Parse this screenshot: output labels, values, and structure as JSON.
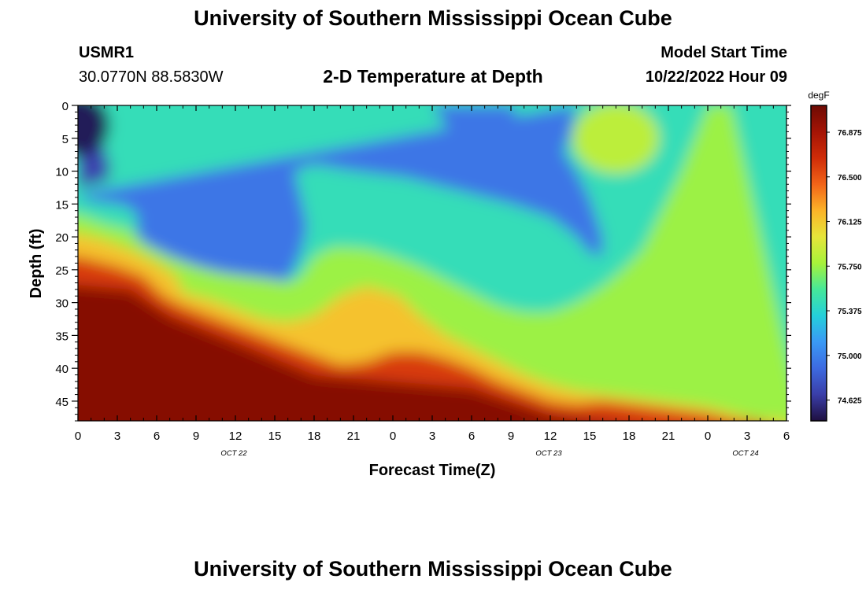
{
  "header": {
    "title": "University of Southern Mississippi Ocean Cube",
    "station_id": "USMR1",
    "coordinates": "30.0770N  88.5830W",
    "subtitle": "2-D Temperature at Depth",
    "model_start_label": "Model Start Time",
    "model_start_value": "10/22/2022 Hour 09"
  },
  "footer": {
    "title": "University of Southern Mississippi Ocean Cube"
  },
  "chart_data": {
    "type": "heatmap",
    "title": "2-D Temperature at Depth",
    "xlabel": "Forecast Time(Z)",
    "ylabel": "Depth (ft)",
    "x_ticks": [
      "0",
      "3",
      "6",
      "9",
      "12",
      "15",
      "18",
      "21",
      "0",
      "3",
      "6",
      "9",
      "12",
      "15",
      "18",
      "21",
      "0",
      "3",
      "6"
    ],
    "x_date_labels": [
      {
        "label": "OCT 22",
        "tick_index": 4
      },
      {
        "label": "OCT 23",
        "tick_index": 12
      },
      {
        "label": "OCT 24",
        "tick_index": 17
      }
    ],
    "x_range_hours": [
      0,
      54
    ],
    "y_ticks": [
      "0",
      "5",
      "10",
      "15",
      "20",
      "25",
      "30",
      "35",
      "40",
      "45"
    ],
    "y_range": [
      0,
      48
    ],
    "y_inverted": true,
    "colorbar": {
      "unit": "degF",
      "range": [
        74.45,
        77.1
      ],
      "tick_values": [
        74.625,
        75.0,
        75.375,
        75.75,
        76.125,
        76.5,
        76.875
      ],
      "tick_labels": [
        "74.625",
        "75.000",
        "75.375",
        "75.750",
        "76.125",
        "76.500",
        "76.875"
      ],
      "colors": [
        "#1e0f40",
        "#3a3ea8",
        "#3d6ae0",
        "#3a99f5",
        "#24d0da",
        "#46e899",
        "#a7f23a",
        "#e6e53a",
        "#fbb328",
        "#f26418",
        "#cf2c08",
        "#a41405",
        "#6e0b04"
      ]
    },
    "isotherms": [
      {
        "value": 74.9,
        "points": [
          [
            0,
            0
          ],
          [
            0.9,
            0
          ],
          [
            2.5,
            9.5
          ],
          [
            2.2,
            11.5
          ],
          [
            0,
            12.5
          ]
        ]
      },
      {
        "value": 75.15,
        "points": [
          [
            0,
            13.5
          ],
          [
            0.8,
            14.5
          ],
          [
            3.5,
            15.2
          ],
          [
            4.5,
            16.5
          ],
          [
            4.5,
            20
          ],
          [
            6,
            22.5
          ],
          [
            8,
            24.5
          ],
          [
            11,
            26
          ],
          [
            13,
            27.5
          ],
          [
            15,
            28
          ],
          [
            16.2,
            26
          ],
          [
            17,
            22.5
          ],
          [
            17.5,
            18.5
          ],
          [
            17,
            14
          ],
          [
            16.5,
            10
          ],
          [
            18,
            9
          ],
          [
            21,
            10
          ],
          [
            25,
            11
          ],
          [
            29,
            13
          ],
          [
            33,
            15
          ],
          [
            36,
            17
          ],
          [
            38,
            20
          ],
          [
            39,
            22.5
          ],
          [
            40,
            23
          ],
          [
            40,
            20
          ],
          [
            39,
            14
          ],
          [
            38,
            10
          ],
          [
            37,
            7
          ],
          [
            37.5,
            5
          ],
          [
            38,
            0
          ]
        ]
      },
      {
        "value": 75.15,
        "points": [
          [
            27,
            0
          ],
          [
            28.5,
            4.5
          ],
          [
            29,
            9
          ],
          [
            30.5,
            11.5
          ],
          [
            32.5,
            10.5
          ],
          [
            33.5,
            7.5
          ],
          [
            33.5,
            3
          ],
          [
            33.2,
            0
          ]
        ]
      },
      {
        "value": 75.55,
        "points": [
          [
            0,
            16.5
          ],
          [
            2,
            18
          ],
          [
            4,
            19
          ],
          [
            5,
            21
          ],
          [
            7,
            23
          ],
          [
            9,
            24.5
          ],
          [
            11,
            25.5
          ],
          [
            13,
            26
          ],
          [
            15,
            26.5
          ],
          [
            16,
            27
          ],
          [
            17,
            26
          ],
          [
            18,
            23
          ],
          [
            19.5,
            21.5
          ],
          [
            22,
            21.8
          ],
          [
            24,
            23
          ],
          [
            26,
            24.5
          ],
          [
            28,
            26.5
          ],
          [
            30,
            28.5
          ],
          [
            32,
            30.5
          ],
          [
            34,
            31.5
          ],
          [
            36,
            31.5
          ],
          [
            38,
            30
          ],
          [
            40,
            27.5
          ],
          [
            41.5,
            25
          ],
          [
            43,
            22
          ],
          [
            44,
            18
          ],
          [
            45,
            14
          ],
          [
            46,
            10
          ],
          [
            47,
            5
          ],
          [
            48,
            0
          ]
        ]
      },
      {
        "value": 75.95,
        "points": [
          [
            0,
            19.5
          ],
          [
            2,
            20.5
          ],
          [
            4,
            22
          ],
          [
            6,
            24
          ],
          [
            7.5,
            26
          ],
          [
            8,
            28.5
          ],
          [
            10,
            29.5
          ],
          [
            12,
            31
          ],
          [
            14,
            32.5
          ],
          [
            16,
            33
          ],
          [
            18,
            32
          ],
          [
            20,
            29
          ],
          [
            22,
            27.5
          ],
          [
            24.5,
            29
          ],
          [
            26,
            32
          ],
          [
            28,
            35
          ],
          [
            30,
            37
          ],
          [
            32,
            39
          ],
          [
            34,
            41
          ],
          [
            36,
            42.5
          ],
          [
            38,
            43.5
          ],
          [
            40,
            44
          ],
          [
            42,
            44.5
          ],
          [
            44,
            45
          ],
          [
            46,
            45.5
          ],
          [
            48,
            46
          ],
          [
            50,
            47
          ],
          [
            52,
            48
          ]
        ]
      },
      {
        "value": 76.4,
        "points": [
          [
            0,
            23
          ],
          [
            3,
            24.5
          ],
          [
            5,
            26
          ],
          [
            6.5,
            29
          ],
          [
            8,
            30.5
          ],
          [
            10,
            32
          ],
          [
            12,
            33.5
          ],
          [
            14,
            35
          ],
          [
            16,
            36.5
          ],
          [
            18,
            38
          ],
          [
            20,
            39.5
          ],
          [
            22,
            39
          ],
          [
            24,
            37.5
          ],
          [
            26,
            37.5
          ],
          [
            28,
            38.5
          ],
          [
            30,
            40
          ],
          [
            32,
            42
          ],
          [
            34,
            43.5
          ],
          [
            36,
            45
          ],
          [
            38,
            45.5
          ],
          [
            40,
            45
          ],
          [
            42,
            45.5
          ],
          [
            44,
            46
          ],
          [
            46,
            46.5
          ],
          [
            48,
            47
          ],
          [
            50,
            48
          ]
        ]
      }
    ]
  }
}
